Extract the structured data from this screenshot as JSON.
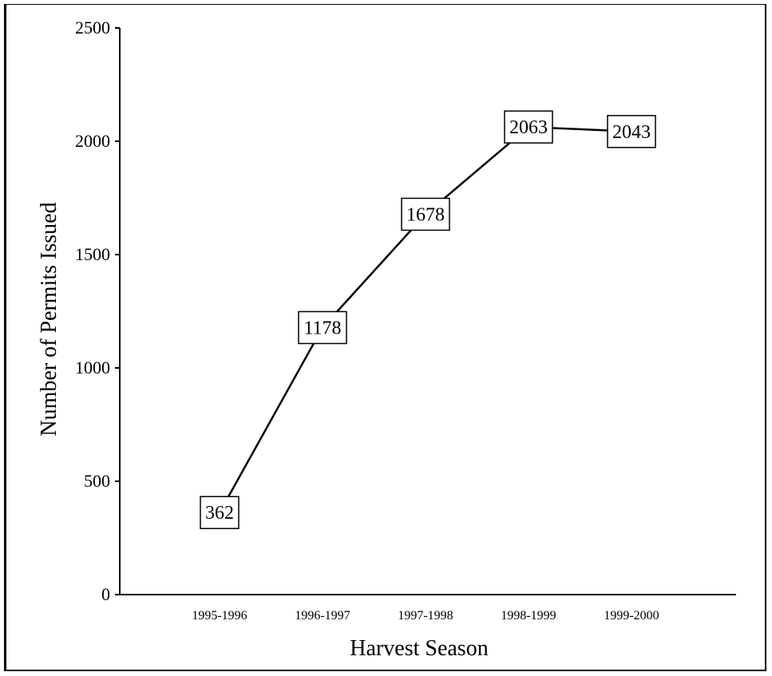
{
  "chart_data": {
    "type": "line",
    "categories": [
      "1995-1996",
      "1996-1997",
      "1997-1998",
      "1998-1999",
      "1999-2000"
    ],
    "series": [
      {
        "values": [
          362,
          1178,
          1678,
          2063,
          2043
        ]
      }
    ],
    "data_labels": [
      "362",
      "1178",
      "1678",
      "2063",
      "2043"
    ],
    "xlabel": "Harvest Season",
    "ylabel": "Number of Permits Issued",
    "ylim": [
      0,
      2500
    ],
    "yticks": [
      0,
      500,
      1000,
      1500,
      2000,
      2500
    ],
    "ytick_labels": [
      "0",
      "500",
      "1000",
      "1500",
      "2000",
      "2500"
    ],
    "grid": false,
    "legend": "none",
    "colors": {
      "line": "#000000",
      "axis": "#000000",
      "label_box": "#ffffff"
    }
  }
}
